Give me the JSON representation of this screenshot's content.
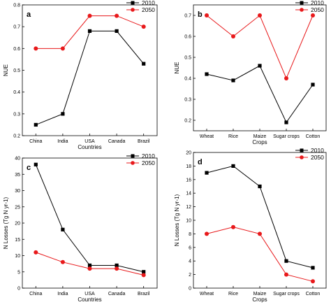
{
  "chart_data": [
    {
      "type": "line",
      "panel": "a",
      "categories": [
        "China",
        "India",
        "USA",
        "Canada",
        "Brazil"
      ],
      "series": [
        {
          "name": "2010",
          "color": "#000000",
          "values": [
            0.25,
            0.3,
            0.68,
            0.68,
            0.53
          ]
        },
        {
          "name": "2050",
          "color": "#e8191b",
          "values": [
            0.6,
            0.6,
            0.75,
            0.75,
            0.7
          ]
        }
      ],
      "xlabel": "Countries",
      "ylabel": "NUE",
      "ylim": [
        0.2,
        0.8
      ],
      "yticks": [
        0.2,
        0.3,
        0.4,
        0.5,
        0.6,
        0.7,
        0.8
      ],
      "ytick_labels": [
        "0.2",
        "0.3",
        "0.4",
        "0.5",
        "0.6",
        "0.7",
        "0.8"
      ],
      "grid": false,
      "legend": "top-right"
    },
    {
      "type": "line",
      "panel": "b",
      "categories": [
        "Wheat",
        "Rice",
        "Maize",
        "Sugar crops",
        "Cotton"
      ],
      "series": [
        {
          "name": "2010",
          "color": "#000000",
          "values": [
            0.42,
            0.39,
            0.46,
            0.19,
            0.37
          ]
        },
        {
          "name": "2050",
          "color": "#e8191b",
          "values": [
            0.7,
            0.6,
            0.7,
            0.4,
            0.7
          ]
        }
      ],
      "xlabel": "Crops",
      "ylabel": "NUE",
      "ylim": [
        0.15,
        0.75
      ],
      "yticks": [
        0.2,
        0.3,
        0.4,
        0.5,
        0.6,
        0.7
      ],
      "ytick_labels": [
        "0.2",
        "0.3",
        "0.4",
        "0.5",
        "0.6",
        "0.7"
      ],
      "grid": false,
      "legend": "top-right"
    },
    {
      "type": "line",
      "panel": "c",
      "categories": [
        "China",
        "India",
        "USA",
        "Canada",
        "Brazil"
      ],
      "series": [
        {
          "name": "2010",
          "color": "#000000",
          "values": [
            38,
            18,
            7,
            7,
            5
          ]
        },
        {
          "name": "2050",
          "color": "#e8191b",
          "values": [
            11,
            8,
            6,
            6,
            4
          ]
        }
      ],
      "xlabel": "Countries",
      "ylabel": "N Losses (Tg N yr-1)",
      "ylim": [
        0,
        40
      ],
      "yticks": [
        0,
        5,
        10,
        15,
        20,
        25,
        30,
        35,
        40
      ],
      "ytick_labels": [
        "0",
        "5",
        "10",
        "15",
        "20",
        "25",
        "30",
        "35",
        "40"
      ],
      "grid": false,
      "legend": "top-right"
    },
    {
      "type": "line",
      "panel": "d",
      "categories": [
        "Wheat",
        "Rice",
        "Maize",
        "Sugar crops",
        "Cotton"
      ],
      "series": [
        {
          "name": "2010",
          "color": "#000000",
          "values": [
            17,
            18,
            15,
            4,
            3
          ]
        },
        {
          "name": "2050",
          "color": "#e8191b",
          "values": [
            8,
            9,
            8,
            2,
            1
          ]
        }
      ],
      "xlabel": "Crops",
      "ylabel": "N Losses (Tg N yr-1)",
      "ylim": [
        0,
        20
      ],
      "yticks": [
        0,
        2,
        4,
        6,
        8,
        10,
        12,
        14,
        16,
        18,
        20
      ],
      "ytick_labels": [
        "0",
        "2",
        "4",
        "6",
        "8",
        "10",
        "12",
        "14",
        "16",
        "18",
        "20"
      ],
      "grid": false,
      "legend": "top-right"
    }
  ]
}
